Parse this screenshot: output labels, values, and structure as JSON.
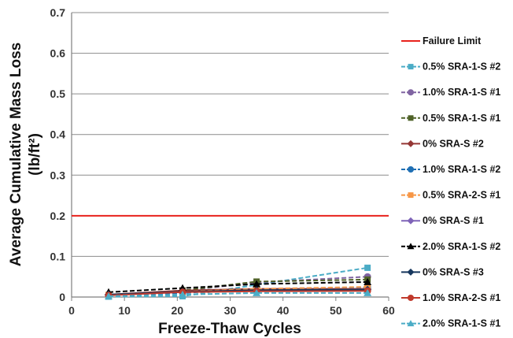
{
  "chart_data": {
    "type": "line",
    "title": "",
    "xlabel": "Freeze-Thaw Cycles",
    "ylabel_lines": [
      "Average Cumulative Mass Loss",
      "(lb/ft²)"
    ],
    "xlim": [
      0,
      60
    ],
    "ylim": [
      0,
      0.7
    ],
    "xticks": [
      "0",
      "10",
      "20",
      "30",
      "40",
      "50",
      "60"
    ],
    "yticks": [
      "0",
      "0.1",
      "0.2",
      "0.3",
      "0.4",
      "0.5",
      "0.6",
      "0.7"
    ],
    "grid": "horizontal",
    "legend_position": "right",
    "reference_line": {
      "name": "Failure Limit",
      "y": 0.2,
      "color": "#e8221c"
    },
    "series": [
      {
        "name": "0.5% SRA-1-S #2",
        "color": "#4bacc6",
        "marker": "square",
        "dash": "dashed",
        "x": [
          7,
          21,
          35,
          56
        ],
        "y": [
          0.001,
          0.002,
          0.03,
          0.072
        ]
      },
      {
        "name": "1.0% SRA-1-S #1",
        "color": "#8064a2",
        "marker": "circle",
        "dash": "dashed",
        "x": [
          7,
          21,
          35,
          56
        ],
        "y": [
          0.004,
          0.015,
          0.036,
          0.05
        ]
      },
      {
        "name": "0.5% SRA-1-S #1",
        "color": "#4f6228",
        "marker": "square",
        "dash": "dashed",
        "x": [
          7,
          21,
          35,
          56
        ],
        "y": [
          0.005,
          0.016,
          0.038,
          0.043
        ]
      },
      {
        "name": "0% SRA-S #2",
        "color": "#953735",
        "marker": "diamond",
        "dash": "solid",
        "x": [
          7,
          21,
          35,
          56
        ],
        "y": [
          0.006,
          0.016,
          0.02,
          0.02
        ]
      },
      {
        "name": "1.0% SRA-1-S #2",
        "color": "#1f6fb4",
        "marker": "circle",
        "dash": "dashed",
        "x": [
          7,
          21,
          35,
          56
        ],
        "y": [
          0.004,
          0.01,
          0.02,
          0.024
        ]
      },
      {
        "name": "0.5% SRA-2-S #1",
        "color": "#f79646",
        "marker": "square",
        "dash": "dashed",
        "x": [
          7,
          21,
          35,
          56
        ],
        "y": [
          0.005,
          0.013,
          0.02,
          0.025
        ]
      },
      {
        "name": "0% SRA-S #1",
        "color": "#7f63b8",
        "marker": "diamond",
        "dash": "solid",
        "x": [
          7,
          21,
          35,
          56
        ],
        "y": [
          0.005,
          0.012,
          0.016,
          0.018
        ]
      },
      {
        "name": "2.0% SRA-1-S #2",
        "color": "#000000",
        "marker": "triangle",
        "dash": "dashed",
        "x": [
          7,
          21,
          35,
          56
        ],
        "y": [
          0.012,
          0.022,
          0.032,
          0.037
        ]
      },
      {
        "name": "0% SRA-S #3",
        "color": "#17375e",
        "marker": "diamond",
        "dash": "solid",
        "x": [
          7,
          21,
          35,
          56
        ],
        "y": [
          0.006,
          0.013,
          0.017,
          0.018
        ]
      },
      {
        "name": "1.0% SRA-2-S #1",
        "color": "#c0392b",
        "marker": "circle",
        "dash": "solid",
        "x": [
          7,
          21,
          35,
          56
        ],
        "y": [
          0.004,
          0.012,
          0.014,
          0.015
        ]
      },
      {
        "name": "2.0% SRA-1-S #1",
        "color": "#4bacc6",
        "marker": "triangle",
        "dash": "dashed",
        "x": [
          7,
          21,
          35,
          56
        ],
        "y": [
          0.002,
          0.006,
          0.01,
          0.01
        ]
      }
    ]
  }
}
